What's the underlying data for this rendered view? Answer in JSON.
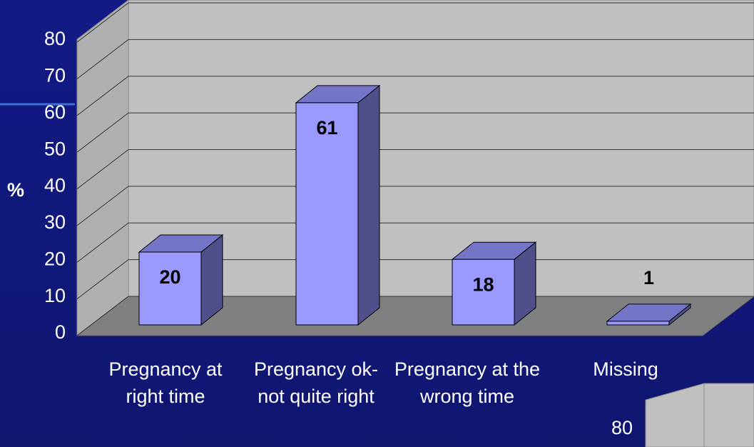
{
  "chart_data": {
    "type": "bar3d",
    "ylabel": "%",
    "categories": [
      "Pregnancy at right time",
      "Pregnancy ok- not quite right",
      "Pregnancy at the wrong time",
      "Missing"
    ],
    "values": [
      20,
      61,
      18,
      1
    ],
    "color": "#9999ff",
    "ylim": [
      0,
      80
    ],
    "yticks": [
      0,
      10,
      20,
      30,
      40,
      50,
      60,
      70,
      80
    ],
    "grid": true
  },
  "partial_chart": {
    "yticks": [
      80
    ]
  }
}
